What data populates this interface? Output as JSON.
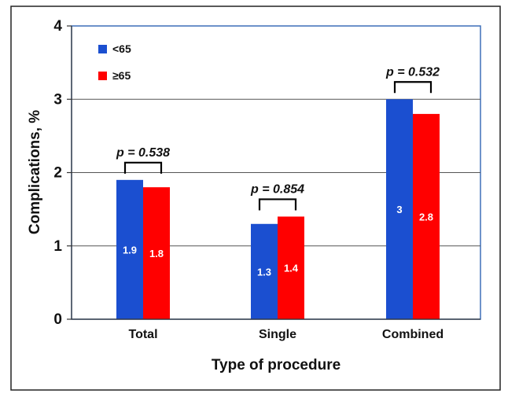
{
  "chart_data": {
    "type": "bar",
    "title": "",
    "xlabel": "Type of procedure",
    "ylabel": "Complications, %",
    "ylim": [
      0,
      4
    ],
    "yticks": [
      "0",
      "1",
      "2",
      "3",
      "4"
    ],
    "grid": true,
    "legend_position": "top-left",
    "categories": [
      "Total",
      "Single",
      "Combined"
    ],
    "series": [
      {
        "name": "<65",
        "color": "#1b4fd0",
        "values": [
          1.9,
          1.3,
          3
        ],
        "labels": [
          "1.9",
          "1.3",
          "3"
        ]
      },
      {
        "name": "≥65",
        "color": "#ff0000",
        "values": [
          1.8,
          1.4,
          2.8
        ],
        "labels": [
          "1.8",
          "1.4",
          "2.8"
        ]
      }
    ],
    "annotations": [
      {
        "category": "Total",
        "prefix": "p",
        "text": " = 0.538"
      },
      {
        "category": "Single",
        "prefix": "p",
        "text": " = 0.854"
      },
      {
        "category": "Combined",
        "prefix": "p",
        "text": " = 0.532"
      }
    ]
  }
}
